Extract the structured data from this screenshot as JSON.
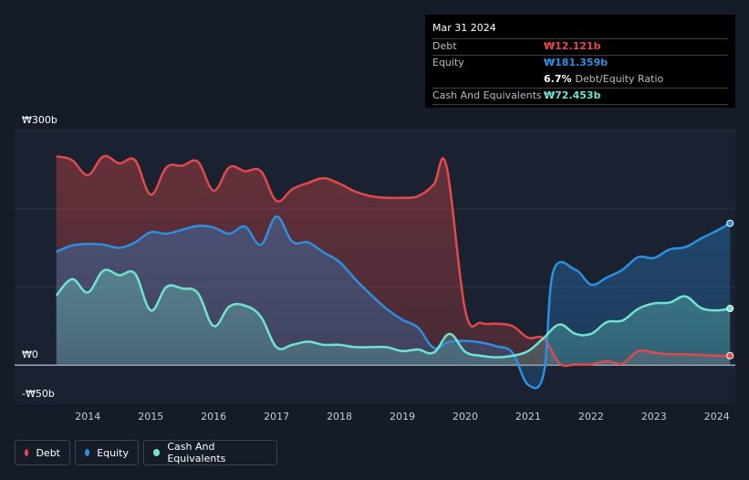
{
  "tooltip": {
    "date": "Mar 31 2024",
    "debt_label": "Debt",
    "debt_value": "₩12.121b",
    "equity_label": "Equity",
    "equity_value": "₩181.359b",
    "ratio_value": "6.7%",
    "ratio_label": "Debt/Equity Ratio",
    "cash_label": "Cash And Equivalents",
    "cash_value": "₩72.453b"
  },
  "legend": [
    {
      "label": "Debt",
      "color": "#e04a4a"
    },
    {
      "label": "Equity",
      "color": "#2c8fe0"
    },
    {
      "label": "Cash And Equivalents",
      "color": "#6fe3cf"
    }
  ],
  "chart_data": {
    "type": "area",
    "title": "",
    "xlabel": "",
    "ylabel": "",
    "ylim": [
      -50,
      300
    ],
    "xlim": [
      2013.3,
      2024.25
    ],
    "y_tick_labels": [
      {
        "value": 300,
        "label": "₩300b"
      },
      {
        "value": 0,
        "label": "₩0"
      },
      {
        "value": -50,
        "label": "-₩50b"
      }
    ],
    "x_ticks": [
      2014,
      2015,
      2016,
      2017,
      2018,
      2019,
      2020,
      2021,
      2022,
      2023,
      2024
    ],
    "series": [
      {
        "name": "Debt",
        "color": "#e04a4a",
        "points": [
          [
            2013.5,
            267
          ],
          [
            2013.75,
            262
          ],
          [
            2014.0,
            243
          ],
          [
            2014.25,
            267
          ],
          [
            2014.5,
            258
          ],
          [
            2014.75,
            262
          ],
          [
            2015.0,
            218
          ],
          [
            2015.25,
            253
          ],
          [
            2015.5,
            255
          ],
          [
            2015.75,
            260
          ],
          [
            2016.0,
            223
          ],
          [
            2016.25,
            253
          ],
          [
            2016.5,
            248
          ],
          [
            2016.75,
            248
          ],
          [
            2017.0,
            210
          ],
          [
            2017.25,
            225
          ],
          [
            2017.5,
            233
          ],
          [
            2017.75,
            239
          ],
          [
            2018.0,
            232
          ],
          [
            2018.25,
            222
          ],
          [
            2018.5,
            216
          ],
          [
            2018.75,
            214
          ],
          [
            2019.0,
            214
          ],
          [
            2019.25,
            216
          ],
          [
            2019.5,
            231
          ],
          [
            2019.7,
            255
          ],
          [
            2020.0,
            70
          ],
          [
            2020.25,
            54
          ],
          [
            2020.5,
            53
          ],
          [
            2020.75,
            50
          ],
          [
            2021.0,
            35
          ],
          [
            2021.25,
            34
          ],
          [
            2021.5,
            2
          ],
          [
            2021.75,
            1
          ],
          [
            2022.0,
            1
          ],
          [
            2022.25,
            5
          ],
          [
            2022.5,
            2
          ],
          [
            2022.75,
            18
          ],
          [
            2023.0,
            16
          ],
          [
            2023.25,
            14
          ],
          [
            2023.5,
            14
          ],
          [
            2023.75,
            13
          ],
          [
            2024.0,
            12
          ],
          [
            2024.21,
            12.121
          ]
        ]
      },
      {
        "name": "Equity",
        "color": "#2c8fe0",
        "points": [
          [
            2013.5,
            145
          ],
          [
            2013.75,
            153
          ],
          [
            2014.0,
            155
          ],
          [
            2014.25,
            154
          ],
          [
            2014.5,
            150
          ],
          [
            2014.75,
            157
          ],
          [
            2015.0,
            170
          ],
          [
            2015.25,
            168
          ],
          [
            2015.5,
            173
          ],
          [
            2015.75,
            178
          ],
          [
            2016.0,
            176
          ],
          [
            2016.25,
            168
          ],
          [
            2016.5,
            177
          ],
          [
            2016.75,
            154
          ],
          [
            2017.0,
            190
          ],
          [
            2017.25,
            158
          ],
          [
            2017.5,
            157
          ],
          [
            2017.75,
            144
          ],
          [
            2018.0,
            132
          ],
          [
            2018.25,
            110
          ],
          [
            2018.5,
            90
          ],
          [
            2018.75,
            72
          ],
          [
            2019.0,
            58
          ],
          [
            2019.25,
            48
          ],
          [
            2019.5,
            22
          ],
          [
            2019.75,
            30
          ],
          [
            2020.0,
            31
          ],
          [
            2020.25,
            29
          ],
          [
            2020.5,
            24
          ],
          [
            2020.75,
            16
          ],
          [
            2021.0,
            -25
          ],
          [
            2021.25,
            -10
          ],
          [
            2021.4,
            120
          ],
          [
            2021.75,
            122
          ],
          [
            2022.0,
            103
          ],
          [
            2022.25,
            112
          ],
          [
            2022.5,
            122
          ],
          [
            2022.75,
            138
          ],
          [
            2023.0,
            137
          ],
          [
            2023.25,
            148
          ],
          [
            2023.5,
            151
          ],
          [
            2023.75,
            162
          ],
          [
            2024.0,
            172
          ],
          [
            2024.21,
            181.359
          ]
        ]
      },
      {
        "name": "Cash And Equivalents",
        "color": "#6fe3cf",
        "points": [
          [
            2013.5,
            89
          ],
          [
            2013.75,
            110
          ],
          [
            2014.0,
            93
          ],
          [
            2014.25,
            121
          ],
          [
            2014.5,
            115
          ],
          [
            2014.75,
            117
          ],
          [
            2015.0,
            70
          ],
          [
            2015.25,
            100
          ],
          [
            2015.5,
            98
          ],
          [
            2015.75,
            92
          ],
          [
            2016.0,
            50
          ],
          [
            2016.25,
            75
          ],
          [
            2016.5,
            76
          ],
          [
            2016.75,
            62
          ],
          [
            2017.0,
            23
          ],
          [
            2017.25,
            26
          ],
          [
            2017.5,
            30
          ],
          [
            2017.75,
            26
          ],
          [
            2018.0,
            26
          ],
          [
            2018.25,
            23
          ],
          [
            2018.5,
            23
          ],
          [
            2018.75,
            23
          ],
          [
            2019.0,
            18
          ],
          [
            2019.25,
            20
          ],
          [
            2019.5,
            16
          ],
          [
            2019.75,
            40
          ],
          [
            2020.0,
            17
          ],
          [
            2020.25,
            12
          ],
          [
            2020.5,
            10
          ],
          [
            2020.75,
            12
          ],
          [
            2021.0,
            18
          ],
          [
            2021.25,
            35
          ],
          [
            2021.5,
            52
          ],
          [
            2021.75,
            40
          ],
          [
            2022.0,
            40
          ],
          [
            2022.25,
            55
          ],
          [
            2022.5,
            57
          ],
          [
            2022.75,
            72
          ],
          [
            2023.0,
            79
          ],
          [
            2023.25,
            80
          ],
          [
            2023.5,
            88
          ],
          [
            2023.75,
            73
          ],
          [
            2024.0,
            70
          ],
          [
            2024.21,
            72.453
          ]
        ]
      }
    ]
  }
}
